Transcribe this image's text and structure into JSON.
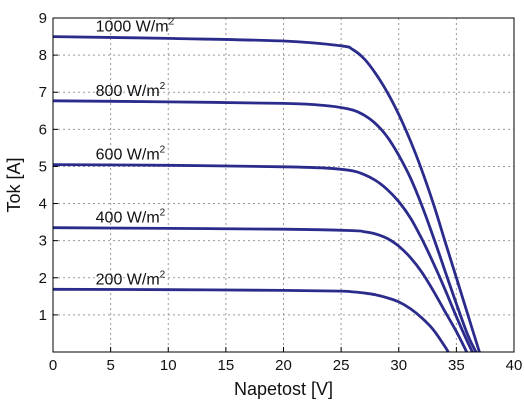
{
  "chart_data": {
    "type": "line",
    "xlabel": "Napetost [V]",
    "ylabel": "Tok [A]",
    "xlim": [
      0,
      40
    ],
    "ylim": [
      0,
      9
    ],
    "x_ticks": [
      0,
      5,
      10,
      15,
      20,
      25,
      30,
      35,
      40
    ],
    "y_ticks": [
      1,
      2,
      3,
      4,
      5,
      6,
      7,
      8,
      9
    ],
    "grid": true,
    "line_color": "#2b2b8c",
    "series": [
      {
        "name": "1000 W/m",
        "superscript": "2",
        "x": [
          0,
          10,
          20,
          25,
          26,
          27,
          28,
          29,
          30,
          31,
          32,
          33,
          34,
          35,
          36,
          37
        ],
        "y": [
          8.5,
          8.45,
          8.38,
          8.25,
          8.15,
          7.9,
          7.5,
          7.0,
          6.4,
          5.7,
          4.9,
          4.0,
          3.0,
          2.0,
          1.0,
          0
        ]
      },
      {
        "name": "800 W/m",
        "superscript": "2",
        "x": [
          0,
          10,
          20,
          24,
          26,
          27,
          28,
          29,
          30,
          31,
          32,
          33,
          34,
          35,
          36,
          36.7
        ],
        "y": [
          6.77,
          6.74,
          6.7,
          6.63,
          6.52,
          6.38,
          6.15,
          5.8,
          5.3,
          4.7,
          3.95,
          3.1,
          2.2,
          1.3,
          0.45,
          0
        ]
      },
      {
        "name": "600 W/m",
        "superscript": "2",
        "x": [
          0,
          10,
          20,
          24,
          26,
          27,
          28,
          29,
          30,
          31,
          32,
          33,
          34,
          35,
          36,
          36.4
        ],
        "y": [
          5.05,
          5.03,
          4.99,
          4.95,
          4.88,
          4.78,
          4.62,
          4.38,
          4.05,
          3.62,
          3.05,
          2.4,
          1.7,
          0.95,
          0.25,
          0
        ]
      },
      {
        "name": "400 W/m",
        "superscript": "2",
        "x": [
          0,
          10,
          20,
          26,
          27,
          28,
          29,
          30,
          31,
          32,
          33,
          34,
          35,
          35.9
        ],
        "y": [
          3.35,
          3.33,
          3.31,
          3.27,
          3.24,
          3.18,
          3.06,
          2.85,
          2.55,
          2.15,
          1.65,
          1.1,
          0.55,
          0
        ]
      },
      {
        "name": "200 W/m",
        "superscript": "2",
        "x": [
          0,
          10,
          20,
          25,
          26,
          27,
          28,
          29,
          30,
          31,
          32,
          33,
          34,
          34.3
        ],
        "y": [
          1.69,
          1.68,
          1.66,
          1.64,
          1.62,
          1.59,
          1.54,
          1.46,
          1.35,
          1.17,
          0.92,
          0.6,
          0.15,
          0
        ]
      }
    ]
  }
}
